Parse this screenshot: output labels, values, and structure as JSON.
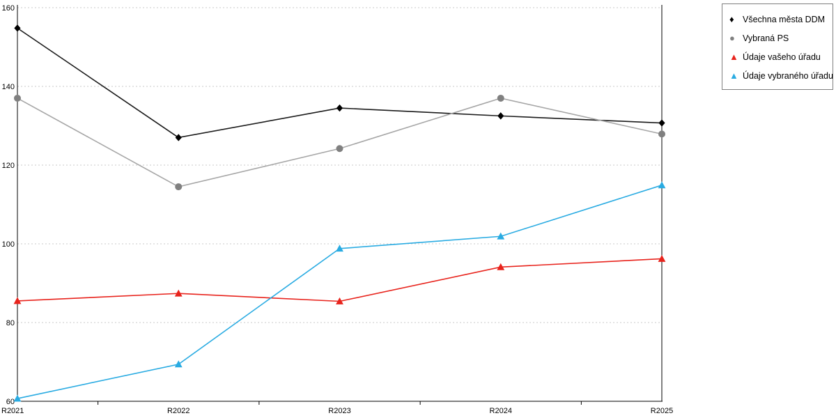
{
  "chart_data": {
    "type": "line",
    "title": "",
    "xlabel": "",
    "ylabel": "",
    "categories": [
      "R2021",
      "R2022",
      "R2023",
      "R2024",
      "R2025"
    ],
    "series": [
      {
        "name": "Všechna města DDM",
        "color": "#1a1a1a",
        "marker_color": "#000000",
        "marker": "diamond",
        "values": [
          154.8,
          127.0,
          134.5,
          132.5,
          130.7
        ]
      },
      {
        "name": "Vybraná PS",
        "color": "#a6a6a6",
        "marker_color": "#808080",
        "marker": "circle",
        "values": [
          137.0,
          114.5,
          124.2,
          137.0,
          127.9
        ]
      },
      {
        "name": "Údaje vašeho úřadu",
        "color": "#e8231c",
        "marker_color": "#e8231c",
        "marker": "triangle",
        "values": [
          85.5,
          87.4,
          85.4,
          94.1,
          96.2
        ]
      },
      {
        "name": "Údaje vybraného úřadu",
        "color": "#29abe2",
        "marker_color": "#29abe2",
        "marker": "triangle",
        "values": [
          60.7,
          69.4,
          98.8,
          101.9,
          114.9
        ]
      }
    ],
    "ylim": [
      60,
      160
    ],
    "yticks": [
      60,
      80,
      100,
      120,
      140,
      160
    ],
    "grid": "horizontal-dashed",
    "gridline_color": "#c9c9c9",
    "axis_color": "#000000",
    "legend_position": "top-right"
  }
}
